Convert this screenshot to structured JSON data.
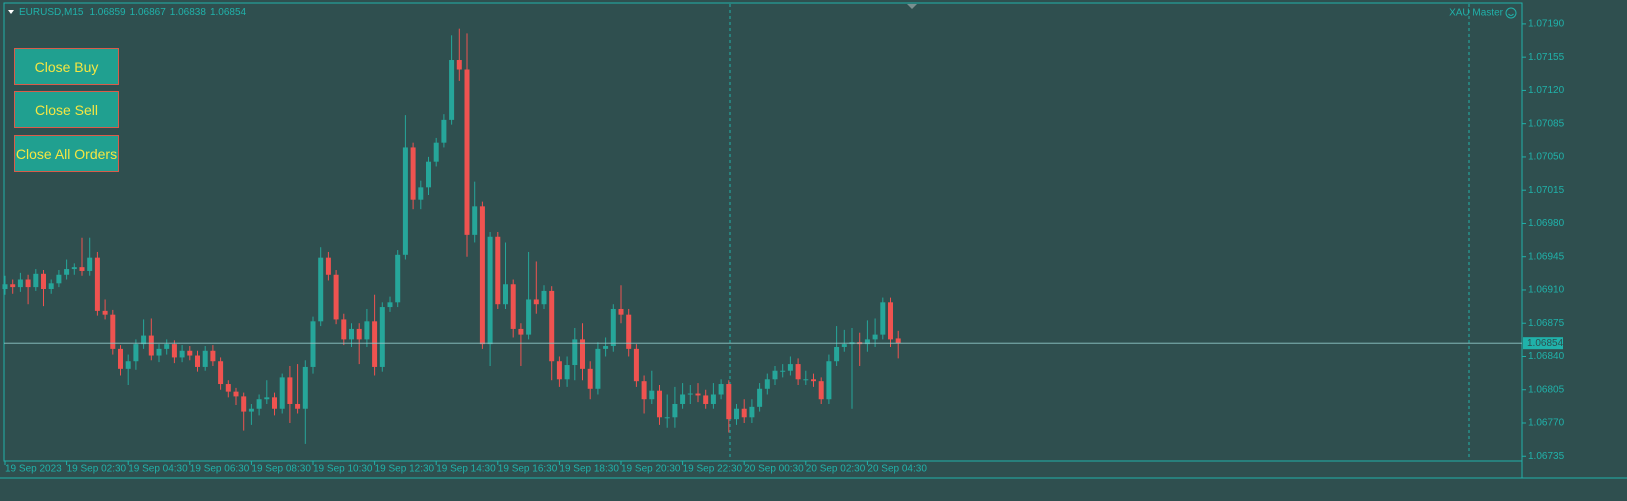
{
  "chart_data": {
    "type": "candlestick",
    "title": "EURUSD,M15",
    "indicator_label": "XAU Master",
    "up_color": "#26a69a",
    "down_color": "#ef5350",
    "grid": false,
    "categories": [
      "19 Sep 2023",
      null,
      null,
      null,
      null,
      null,
      null,
      null,
      "19 Sep 02:30",
      null,
      null,
      null,
      null,
      null,
      null,
      null,
      "19 Sep 04:30",
      null,
      null,
      null,
      null,
      null,
      null,
      null,
      "19 Sep 06:30",
      null,
      null,
      null,
      null,
      null,
      null,
      null,
      "19 Sep 08:30",
      null,
      null,
      null,
      null,
      null,
      null,
      null,
      "19 Sep 10:30",
      null,
      null,
      null,
      null,
      null,
      null,
      null,
      "19 Sep 12:30",
      null,
      null,
      null,
      null,
      null,
      null,
      null,
      "19 Sep 14:30",
      null,
      null,
      null,
      null,
      null,
      null,
      null,
      "19 Sep 16:30",
      null,
      null,
      null,
      null,
      null,
      null,
      null,
      "19 Sep 18:30",
      null,
      null,
      null,
      null,
      null,
      null,
      null,
      "19 Sep 20:30",
      null,
      null,
      null,
      null,
      null,
      null,
      null,
      "19 Sep 22:30",
      null,
      null,
      null,
      null,
      null,
      null,
      null,
      "20 Sep 00:30",
      null,
      null,
      null,
      null,
      null,
      null,
      null,
      "20 Sep 02:30",
      null,
      null,
      null,
      null,
      null,
      null,
      null,
      "20 Sep 04:30",
      null,
      null,
      null,
      null
    ],
    "open": [
      1.06911,
      1.06916,
      1.06913,
      1.06921,
      1.06913,
      1.06927,
      1.06911,
      1.06917,
      1.06926,
      1.06932,
      1.06934,
      1.0693,
      1.06944,
      1.06888,
      1.06884,
      1.06848,
      1.06827,
      1.06835,
      1.06853,
      1.06862,
      1.06841,
      1.06848,
      1.06853,
      1.06839,
      1.06846,
      1.06841,
      1.06829,
      1.06846,
      1.06835,
      1.06811,
      1.06803,
      1.06798,
      1.06782,
      1.06785,
      1.06795,
      1.06797,
      1.06785,
      1.06818,
      1.0679,
      1.06785,
      1.06829,
      1.06877,
      1.06944,
      1.06926,
      1.06879,
      1.06858,
      1.06869,
      1.06858,
      1.06877,
      1.06829,
      1.06892,
      1.06897,
      1.06947,
      1.0706,
      1.07005,
      1.07018,
      1.07045,
      1.07065,
      1.07089,
      1.07152,
      1.07142,
      1.06968,
      1.06998,
      1.06853,
      1.06966,
      1.06895,
      1.06916,
      1.06869,
      1.06863,
      1.069,
      1.06895,
      1.06909,
      1.06835,
      1.06816,
      1.06831,
      1.06858,
      1.06827,
      1.06806,
      1.06848,
      1.06851,
      1.0689,
      1.06884,
      1.06848,
      1.06814,
      1.06795,
      1.06804,
      1.06776,
      1.06776,
      1.0679,
      1.068,
      1.06801,
      1.06799,
      1.0679,
      1.068,
      1.06811,
      1.06774,
      1.06785,
      1.06776,
      1.06787,
      1.06806,
      1.06816,
      1.06825,
      1.06825,
      1.06832,
      1.06816,
      1.06816,
      1.06814,
      1.06795,
      1.06835,
      1.0685,
      1.06853,
      1.06855,
      1.06853,
      1.06858,
      1.06863,
      1.06897,
      1.06859
    ],
    "high": [
      1.06925,
      1.06921,
      1.06928,
      1.06926,
      1.06932,
      1.06931,
      1.06921,
      1.06931,
      1.06942,
      1.06938,
      1.06965,
      1.06965,
      1.0695,
      1.069,
      1.06889,
      1.06852,
      1.06842,
      1.06858,
      1.06879,
      1.0688,
      1.06853,
      1.06858,
      1.06857,
      1.06852,
      1.06851,
      1.06846,
      1.06851,
      1.06852,
      1.06839,
      1.06815,
      1.06807,
      1.06802,
      1.0679,
      1.068,
      1.06815,
      1.06802,
      1.06822,
      1.0683,
      1.06832,
      1.06836,
      1.06882,
      1.06955,
      1.0695,
      1.06931,
      1.06885,
      1.06875,
      1.06875,
      1.0689,
      1.06905,
      1.06897,
      1.06903,
      1.06952,
      1.07094,
      1.07065,
      1.07025,
      1.0705,
      1.0707,
      1.07095,
      1.07178,
      1.07185,
      1.0718,
      1.07024,
      1.07003,
      1.06971,
      1.06971,
      1.0696,
      1.06921,
      1.06875,
      1.0695,
      1.0694,
      1.06915,
      1.06914,
      1.0684,
      1.0684,
      1.0687,
      1.06875,
      1.06835,
      1.06855,
      1.0686,
      1.06895,
      1.06915,
      1.0689,
      1.06853,
      1.0682,
      1.06825,
      1.0681,
      1.068,
      1.06808,
      1.06812,
      1.0681,
      1.06812,
      1.06805,
      1.06812,
      1.06816,
      1.06815,
      1.0679,
      1.06795,
      1.06795,
      1.06812,
      1.06822,
      1.0683,
      1.06832,
      1.0684,
      1.06838,
      1.06825,
      1.06822,
      1.06818,
      1.06842,
      1.06872,
      1.06868,
      1.0687,
      1.06865,
      1.06878,
      1.0688,
      1.06902,
      1.06902,
      1.06867
    ],
    "low": [
      1.06905,
      1.06906,
      1.06908,
      1.06895,
      1.06909,
      1.06893,
      1.06906,
      1.06913,
      1.06921,
      1.06926,
      1.06925,
      1.06925,
      1.06883,
      1.06879,
      1.06842,
      1.0682,
      1.0681,
      1.06826,
      1.06848,
      1.06836,
      1.06834,
      1.06842,
      1.06833,
      1.06834,
      1.06836,
      1.06824,
      1.06825,
      1.0683,
      1.06805,
      1.06797,
      1.06789,
      1.06762,
      1.06768,
      1.06778,
      1.0679,
      1.06778,
      1.0678,
      1.0677,
      1.0678,
      1.06748,
      1.06822,
      1.06872,
      1.0692,
      1.06874,
      1.06852,
      1.0685,
      1.06832,
      1.0685,
      1.0682,
      1.06824,
      1.06887,
      1.06892,
      1.06942,
      1.06995,
      1.06995,
      1.0701,
      1.0704,
      1.0706,
      1.07084,
      1.0713,
      1.06945,
      1.0696,
      1.06848,
      1.0683,
      1.0689,
      1.0689,
      1.0686,
      1.0683,
      1.06858,
      1.06885,
      1.0689,
      1.06815,
      1.06808,
      1.06808,
      1.06815,
      1.06815,
      1.06795,
      1.068,
      1.0684,
      1.06845,
      1.06875,
      1.0684,
      1.06808,
      1.0678,
      1.0679,
      1.06768,
      1.06765,
      1.06765,
      1.06785,
      1.0679,
      1.06792,
      1.06785,
      1.06785,
      1.06795,
      1.0676,
      1.06768,
      1.0677,
      1.0677,
      1.06782,
      1.068,
      1.0681,
      1.06818,
      1.0682,
      1.0681,
      1.0681,
      1.06808,
      1.0679,
      1.0679,
      1.0683,
      1.06845,
      1.06785,
      1.0683,
      1.06845,
      1.0685,
      1.06858,
      1.0685,
      1.06838
    ],
    "close": [
      1.06916,
      1.06913,
      1.06921,
      1.06913,
      1.06927,
      1.06911,
      1.06917,
      1.06926,
      1.06932,
      1.06934,
      1.0693,
      1.06944,
      1.06888,
      1.06884,
      1.06848,
      1.06827,
      1.06835,
      1.06853,
      1.06862,
      1.06841,
      1.06848,
      1.06853,
      1.06839,
      1.06846,
      1.06841,
      1.06829,
      1.06846,
      1.06835,
      1.06811,
      1.06803,
      1.06798,
      1.06782,
      1.06785,
      1.06795,
      1.06797,
      1.06785,
      1.06818,
      1.0679,
      1.06785,
      1.06829,
      1.06877,
      1.06944,
      1.06926,
      1.06879,
      1.06858,
      1.06869,
      1.06858,
      1.06877,
      1.06829,
      1.06892,
      1.06897,
      1.06947,
      1.0706,
      1.07005,
      1.07018,
      1.07045,
      1.07065,
      1.07089,
      1.07152,
      1.07142,
      1.06968,
      1.06998,
      1.06853,
      1.06966,
      1.06895,
      1.06916,
      1.06869,
      1.06863,
      1.069,
      1.06895,
      1.06909,
      1.06835,
      1.06816,
      1.06831,
      1.06858,
      1.06827,
      1.06806,
      1.06848,
      1.06851,
      1.0689,
      1.06884,
      1.06848,
      1.06814,
      1.06795,
      1.06804,
      1.06776,
      1.06776,
      1.0679,
      1.068,
      1.06801,
      1.06799,
      1.0679,
      1.068,
      1.06811,
      1.06774,
      1.06785,
      1.06776,
      1.06787,
      1.06806,
      1.06816,
      1.06825,
      1.06825,
      1.06832,
      1.06816,
      1.06816,
      1.06814,
      1.06795,
      1.06835,
      1.0685,
      1.06853,
      1.06855,
      1.06853,
      1.06858,
      1.06863,
      1.06897,
      1.06858,
      1.06854
    ],
    "ylim": [
      1.0673,
      1.07212
    ],
    "yticks": [
      {
        "value": 1.0719,
        "label": "1.07190"
      },
      1.07155,
      {
        "value": 1.0712,
        "label": "1.07120"
      },
      1.07085,
      {
        "value": 1.0705,
        "label": "1.07050"
      },
      1.07015,
      {
        "value": 1.0698,
        "label": "1.06980"
      },
      1.06945,
      {
        "value": 1.0691,
        "label": "1.06910"
      },
      1.06875,
      {
        "value": 1.0684,
        "label": "1.06840"
      },
      1.06805,
      {
        "value": 1.0677,
        "label": "1.06770"
      },
      1.06735
    ]
  },
  "buttons": [
    "Close Buy",
    "Close Sell",
    "Close All Orders"
  ]
}
